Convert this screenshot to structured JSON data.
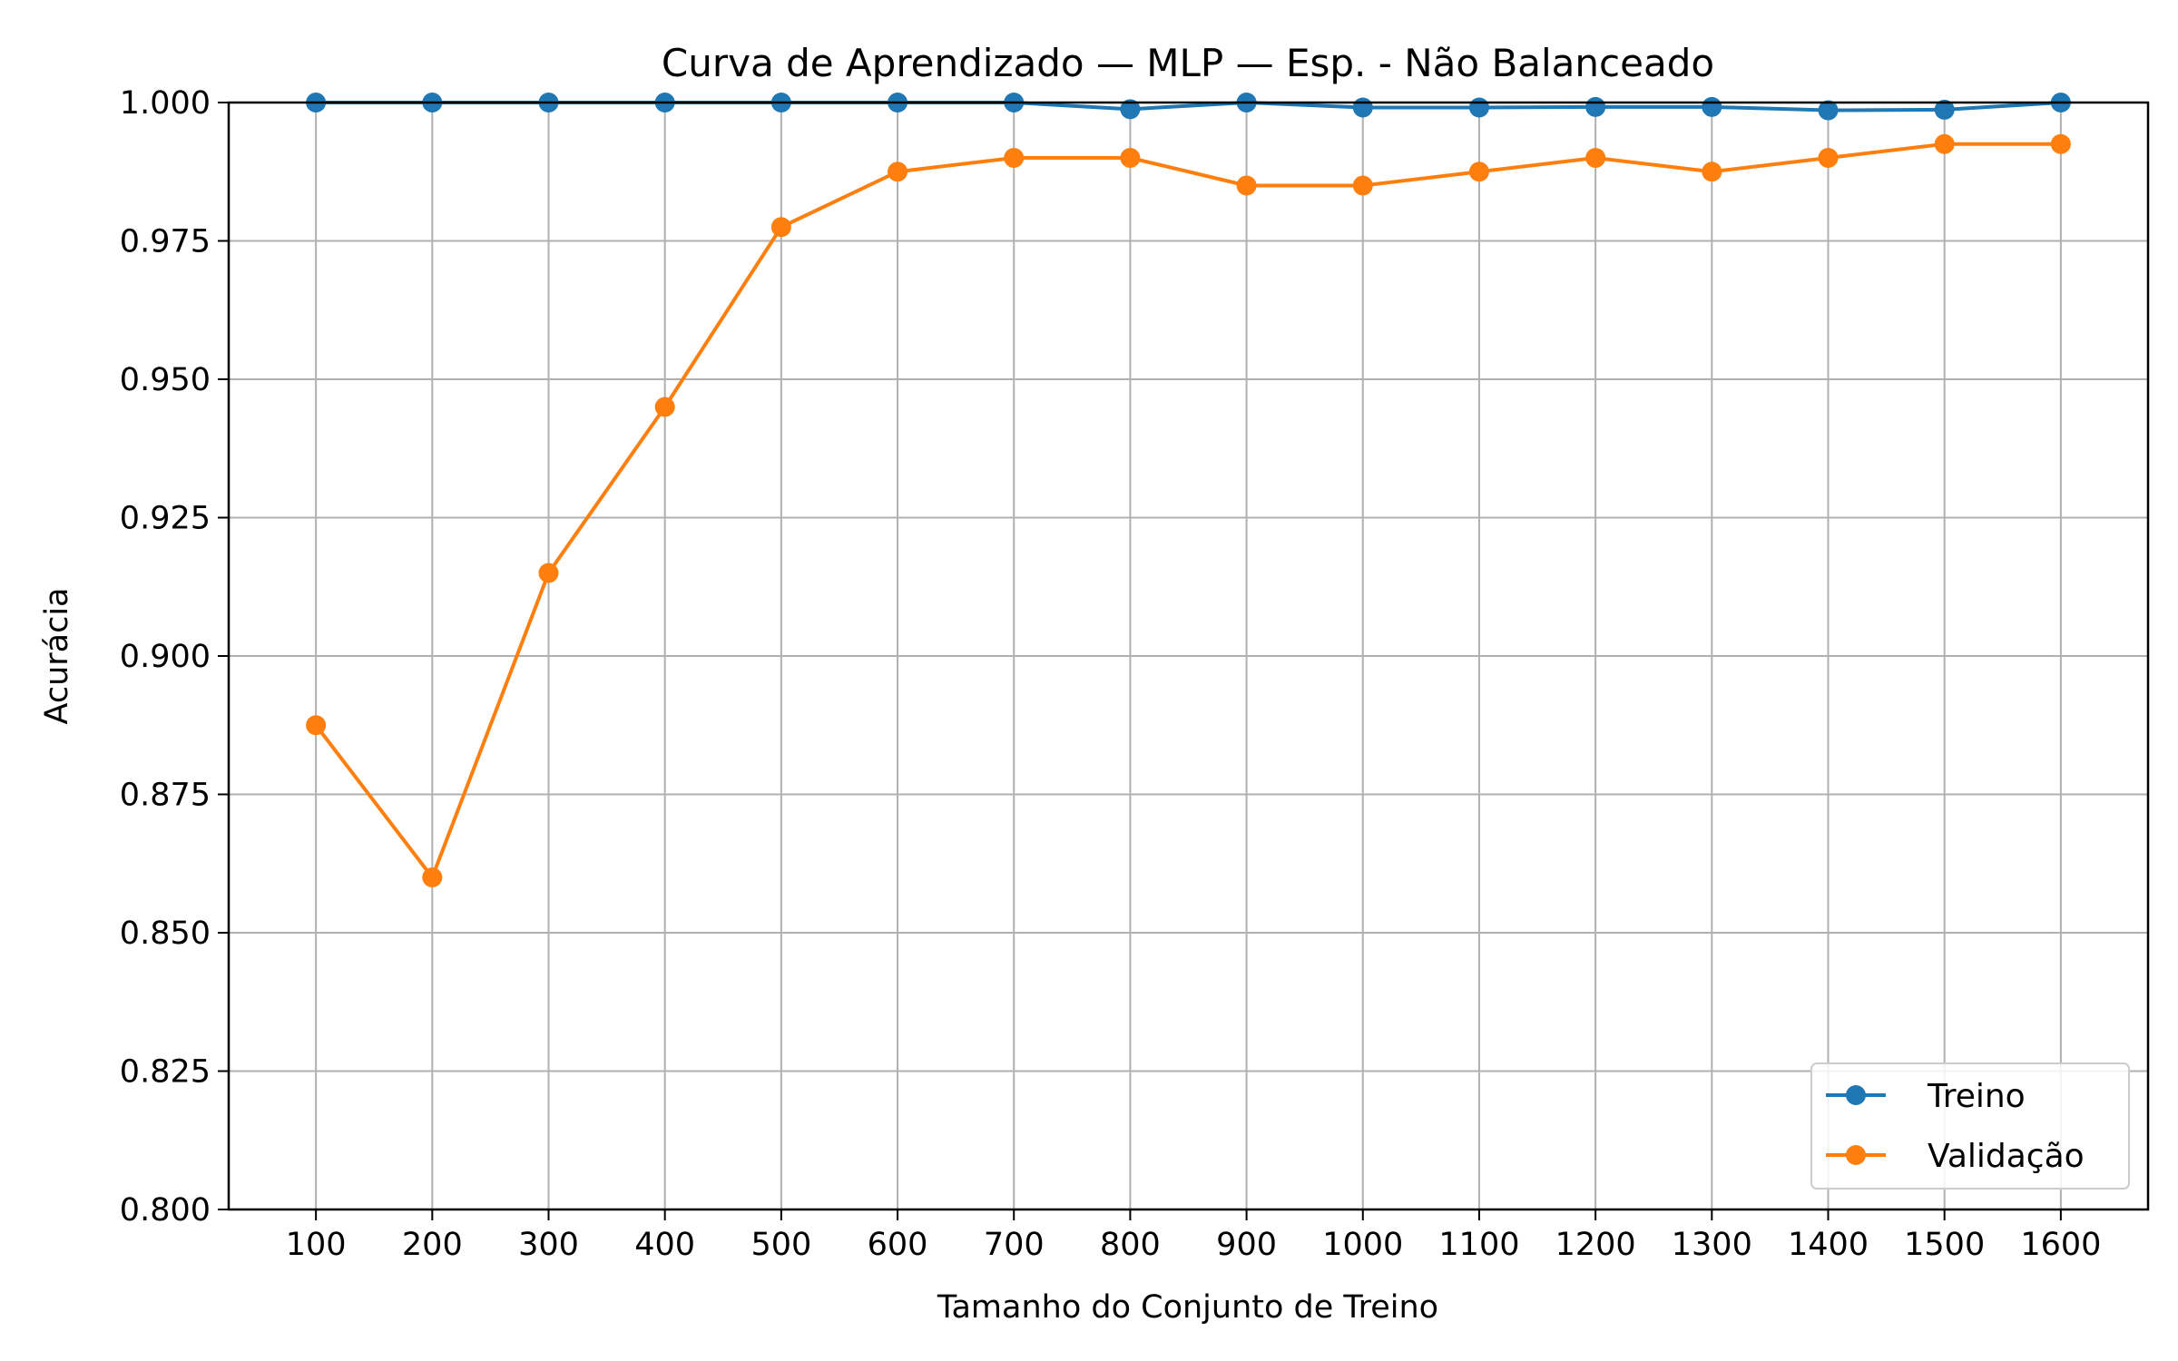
{
  "chart_data": {
    "type": "line",
    "title": "Curva de Aprendizado — MLP — Esp. - Não Balanceado",
    "xlabel": "Tamanho do Conjunto de Treino",
    "ylabel": "Acurácia",
    "x": [
      100,
      200,
      300,
      400,
      500,
      600,
      700,
      800,
      900,
      1000,
      1100,
      1200,
      1300,
      1400,
      1500,
      1600
    ],
    "xticks": [
      "100",
      "200",
      "300",
      "400",
      "500",
      "600",
      "700",
      "800",
      "900",
      "1000",
      "1100",
      "1200",
      "1300",
      "1400",
      "1500",
      "1600"
    ],
    "yticks": [
      "0.800",
      "0.825",
      "0.850",
      "0.875",
      "0.900",
      "0.925",
      "0.950",
      "0.975",
      "1.000"
    ],
    "xlim": [
      25,
      1675
    ],
    "ylim": [
      0.8,
      1.0
    ],
    "grid": true,
    "legend_position": "lower-right",
    "series": [
      {
        "name": "Treino",
        "color": "#1f77b4",
        "values": [
          1.0,
          1.0,
          1.0,
          1.0,
          1.0,
          1.0,
          1.0,
          0.9988,
          1.0,
          0.9991,
          0.9991,
          0.9992,
          0.9992,
          0.9986,
          0.9987,
          1.0
        ]
      },
      {
        "name": "Validação",
        "color": "#ff7f0e",
        "values": [
          0.8875,
          0.86,
          0.915,
          0.945,
          0.9775,
          0.9875,
          0.99,
          0.99,
          0.985,
          0.985,
          0.9875,
          0.99,
          0.9875,
          0.99,
          0.9925,
          0.9925
        ]
      }
    ]
  }
}
